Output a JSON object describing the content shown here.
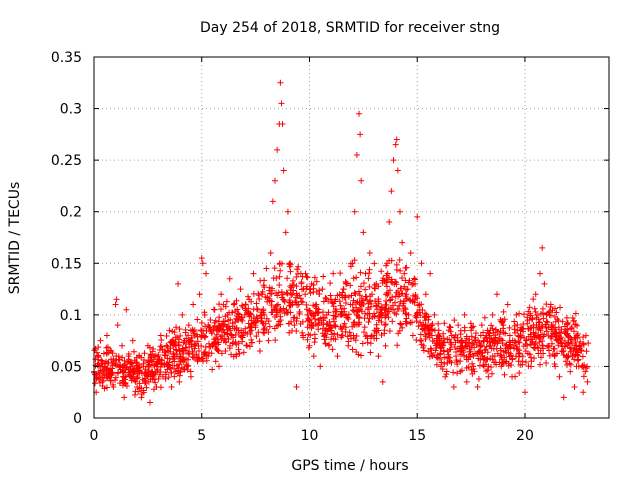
{
  "chart_data": {
    "type": "scatter",
    "title": "Day 254 of 2018, SRMTID for receiver stng",
    "xlabel": "GPS time / hours",
    "ylabel": "SRMTID / TECUs",
    "xlim": [
      0,
      23.9
    ],
    "ylim": [
      0,
      0.35
    ],
    "xticks": [
      0,
      5,
      10,
      15,
      20
    ],
    "xtick_labels": [
      "0",
      "5",
      "10",
      "15",
      "20"
    ],
    "yticks": [
      0,
      0.05,
      0.1,
      0.15,
      0.2,
      0.25,
      0.3,
      0.35
    ],
    "ytick_labels": [
      "0",
      "0.05",
      "0.1",
      "0.15",
      "0.2",
      "0.25",
      "0.3",
      "0.35"
    ],
    "grid": true,
    "marker": "+",
    "color": "#ff0000",
    "series": [
      {
        "name": "SRMTID",
        "points": [
          [
            0.0,
            0.045
          ],
          [
            0.1,
            0.025
          ],
          [
            0.2,
            0.06
          ],
          [
            0.3,
            0.075
          ],
          [
            0.4,
            0.035
          ],
          [
            0.5,
            0.05
          ],
          [
            0.6,
            0.08
          ],
          [
            0.7,
            0.04
          ],
          [
            0.8,
            0.065
          ],
          [
            0.9,
            0.03
          ],
          [
            1.0,
            0.11
          ],
          [
            1.05,
            0.115
          ],
          [
            1.1,
            0.09
          ],
          [
            1.2,
            0.05
          ],
          [
            1.3,
            0.07
          ],
          [
            1.4,
            0.02
          ],
          [
            1.5,
            0.105
          ],
          [
            1.6,
            0.06
          ],
          [
            1.7,
            0.04
          ],
          [
            1.8,
            0.075
          ],
          [
            1.9,
            0.045
          ],
          [
            2.0,
            0.03
          ],
          [
            2.1,
            0.06
          ],
          [
            2.2,
            0.02
          ],
          [
            2.3,
            0.05
          ],
          [
            2.4,
            0.035
          ],
          [
            2.5,
            0.07
          ],
          [
            2.6,
            0.015
          ],
          [
            2.7,
            0.045
          ],
          [
            2.8,
            0.06
          ],
          [
            2.9,
            0.03
          ],
          [
            3.0,
            0.055
          ],
          [
            3.1,
            0.08
          ],
          [
            3.2,
            0.04
          ],
          [
            3.3,
            0.065
          ],
          [
            3.4,
            0.05
          ],
          [
            3.5,
            0.085
          ],
          [
            3.6,
            0.03
          ],
          [
            3.7,
            0.07
          ],
          [
            3.8,
            0.045
          ],
          [
            3.9,
            0.13
          ],
          [
            4.0,
            0.06
          ],
          [
            4.1,
            0.1
          ],
          [
            4.2,
            0.075
          ],
          [
            4.3,
            0.05
          ],
          [
            4.4,
            0.09
          ],
          [
            4.5,
            0.04
          ],
          [
            4.6,
            0.11
          ],
          [
            4.7,
            0.07
          ],
          [
            4.8,
            0.055
          ],
          [
            4.9,
            0.12
          ],
          [
            5.0,
            0.155
          ],
          [
            5.05,
            0.15
          ],
          [
            5.1,
            0.08
          ],
          [
            5.2,
            0.14
          ],
          [
            5.3,
            0.06
          ],
          [
            5.4,
            0.095
          ],
          [
            5.5,
            0.07
          ],
          [
            5.6,
            0.105
          ],
          [
            5.7,
            0.085
          ],
          [
            5.8,
            0.05
          ],
          [
            5.9,
            0.12
          ],
          [
            6.0,
            0.09
          ],
          [
            6.1,
            0.065
          ],
          [
            6.2,
            0.1
          ],
          [
            6.3,
            0.135
          ],
          [
            6.4,
            0.08
          ],
          [
            6.5,
            0.11
          ],
          [
            6.6,
            0.06
          ],
          [
            6.7,
            0.095
          ],
          [
            6.8,
            0.125
          ],
          [
            6.9,
            0.08
          ],
          [
            7.0,
            0.1
          ],
          [
            7.1,
            0.07
          ],
          [
            7.2,
            0.115
          ],
          [
            7.3,
            0.085
          ],
          [
            7.4,
            0.14
          ],
          [
            7.5,
            0.09
          ],
          [
            7.6,
            0.105
          ],
          [
            7.7,
            0.065
          ],
          [
            7.8,
            0.12
          ],
          [
            7.9,
            0.1
          ],
          [
            8.0,
            0.145
          ],
          [
            8.1,
            0.075
          ],
          [
            8.2,
            0.16
          ],
          [
            8.3,
            0.21
          ],
          [
            8.4,
            0.23
          ],
          [
            8.5,
            0.26
          ],
          [
            8.6,
            0.285
          ],
          [
            8.65,
            0.325
          ],
          [
            8.7,
            0.305
          ],
          [
            8.75,
            0.285
          ],
          [
            8.8,
            0.24
          ],
          [
            8.9,
            0.18
          ],
          [
            9.0,
            0.2
          ],
          [
            9.1,
            0.15
          ],
          [
            9.2,
            0.12
          ],
          [
            9.3,
            0.09
          ],
          [
            9.4,
            0.03
          ],
          [
            9.5,
            0.11
          ],
          [
            9.6,
            0.14
          ],
          [
            9.7,
            0.08
          ],
          [
            9.8,
            0.12
          ],
          [
            9.9,
            0.1
          ],
          [
            10.0,
            0.07
          ],
          [
            10.1,
            0.13
          ],
          [
            10.2,
            0.06
          ],
          [
            10.3,
            0.11
          ],
          [
            10.4,
            0.09
          ],
          [
            10.5,
            0.05
          ],
          [
            10.6,
            0.125
          ],
          [
            10.7,
            0.08
          ],
          [
            10.8,
            0.1
          ],
          [
            10.9,
            0.07
          ],
          [
            11.0,
            0.115
          ],
          [
            11.1,
            0.14
          ],
          [
            11.2,
            0.09
          ],
          [
            11.3,
            0.06
          ],
          [
            11.4,
            0.12
          ],
          [
            11.5,
            0.08
          ],
          [
            11.6,
            0.1
          ],
          [
            11.7,
            0.13
          ],
          [
            11.8,
            0.07
          ],
          [
            11.9,
            0.11
          ],
          [
            12.0,
            0.15
          ],
          [
            12.1,
            0.2
          ],
          [
            12.2,
            0.255
          ],
          [
            12.3,
            0.295
          ],
          [
            12.35,
            0.275
          ],
          [
            12.4,
            0.23
          ],
          [
            12.5,
            0.18
          ],
          [
            12.6,
            0.14
          ],
          [
            12.7,
            0.1
          ],
          [
            12.8,
            0.16
          ],
          [
            12.9,
            0.12
          ],
          [
            13.0,
            0.08
          ],
          [
            13.1,
            0.13
          ],
          [
            13.2,
            0.06
          ],
          [
            13.3,
            0.1
          ],
          [
            13.4,
            0.035
          ],
          [
            13.5,
            0.09
          ],
          [
            13.6,
            0.15
          ],
          [
            13.7,
            0.19
          ],
          [
            13.8,
            0.22
          ],
          [
            13.9,
            0.25
          ],
          [
            14.0,
            0.265
          ],
          [
            14.05,
            0.27
          ],
          [
            14.1,
            0.24
          ],
          [
            14.2,
            0.2
          ],
          [
            14.3,
            0.17
          ],
          [
            14.4,
            0.14
          ],
          [
            14.5,
            0.12
          ],
          [
            14.6,
            0.1
          ],
          [
            14.7,
            0.16
          ],
          [
            14.8,
            0.08
          ],
          [
            14.9,
            0.13
          ],
          [
            15.0,
            0.195
          ],
          [
            15.1,
            0.11
          ],
          [
            15.2,
            0.15
          ],
          [
            15.3,
            0.07
          ],
          [
            15.4,
            0.12
          ],
          [
            15.5,
            0.09
          ],
          [
            15.6,
            0.14
          ],
          [
            15.7,
            0.06
          ],
          [
            15.8,
            0.1
          ],
          [
            15.9,
            0.075
          ],
          [
            16.0,
            0.085
          ],
          [
            16.1,
            0.05
          ],
          [
            16.2,
            0.07
          ],
          [
            16.3,
            0.04
          ],
          [
            16.4,
            0.065
          ],
          [
            16.5,
            0.055
          ],
          [
            16.6,
            0.08
          ],
          [
            16.7,
            0.03
          ],
          [
            16.8,
            0.06
          ],
          [
            16.9,
            0.09
          ],
          [
            17.0,
            0.045
          ],
          [
            17.1,
            0.07
          ],
          [
            17.2,
            0.1
          ],
          [
            17.3,
            0.035
          ],
          [
            17.4,
            0.06
          ],
          [
            17.5,
            0.085
          ],
          [
            17.6,
            0.05
          ],
          [
            17.7,
            0.075
          ],
          [
            17.8,
            0.03
          ],
          [
            17.9,
            0.065
          ],
          [
            18.0,
            0.09
          ],
          [
            18.1,
            0.05
          ],
          [
            18.2,
            0.08
          ],
          [
            18.3,
            0.04
          ],
          [
            18.4,
            0.07
          ],
          [
            18.5,
            0.1
          ],
          [
            18.6,
            0.06
          ],
          [
            18.7,
            0.12
          ],
          [
            18.8,
            0.075
          ],
          [
            18.9,
            0.05
          ],
          [
            19.0,
            0.09
          ],
          [
            19.1,
            0.065
          ],
          [
            19.2,
            0.11
          ],
          [
            19.3,
            0.08
          ],
          [
            19.4,
            0.04
          ],
          [
            19.5,
            0.07
          ],
          [
            19.6,
            0.1
          ],
          [
            19.7,
            0.055
          ],
          [
            19.8,
            0.085
          ],
          [
            19.9,
            0.06
          ],
          [
            20.0,
            0.025
          ],
          [
            20.1,
            0.07
          ],
          [
            20.2,
            0.095
          ],
          [
            20.3,
            0.055
          ],
          [
            20.4,
            0.09
          ],
          [
            20.5,
            0.12
          ],
          [
            20.6,
            0.08
          ],
          [
            20.7,
            0.14
          ],
          [
            20.8,
            0.165
          ],
          [
            20.9,
            0.13
          ],
          [
            21.0,
            0.1
          ],
          [
            21.1,
            0.07
          ],
          [
            21.2,
            0.11
          ],
          [
            21.3,
            0.09
          ],
          [
            21.4,
            0.05
          ],
          [
            21.5,
            0.075
          ],
          [
            21.6,
            0.04
          ],
          [
            21.7,
            0.065
          ],
          [
            21.8,
            0.02
          ],
          [
            21.9,
            0.055
          ],
          [
            22.0,
            0.08
          ],
          [
            22.1,
            0.045
          ],
          [
            22.2,
            0.06
          ],
          [
            22.3,
            0.03
          ],
          [
            22.4,
            0.07
          ],
          [
            22.5,
            0.05
          ],
          [
            22.6,
            0.065
          ],
          [
            22.7,
            0.025
          ],
          [
            22.8,
            0.045
          ],
          [
            22.9,
            0.035
          ]
        ]
      }
    ],
    "density_envelope": {
      "note": "approximate lower/upper band of the dense point cloud vs hour",
      "hours": [
        0,
        2,
        4,
        6,
        8,
        9,
        10,
        11,
        12,
        13,
        14,
        15,
        16,
        18,
        20,
        21,
        23
      ],
      "low": [
        0.03,
        0.025,
        0.035,
        0.055,
        0.07,
        0.07,
        0.065,
        0.06,
        0.065,
        0.06,
        0.075,
        0.07,
        0.045,
        0.04,
        0.045,
        0.05,
        0.035
      ],
      "high": [
        0.075,
        0.06,
        0.09,
        0.11,
        0.135,
        0.17,
        0.14,
        0.13,
        0.15,
        0.15,
        0.16,
        0.135,
        0.09,
        0.095,
        0.11,
        0.125,
        0.085
      ]
    }
  }
}
